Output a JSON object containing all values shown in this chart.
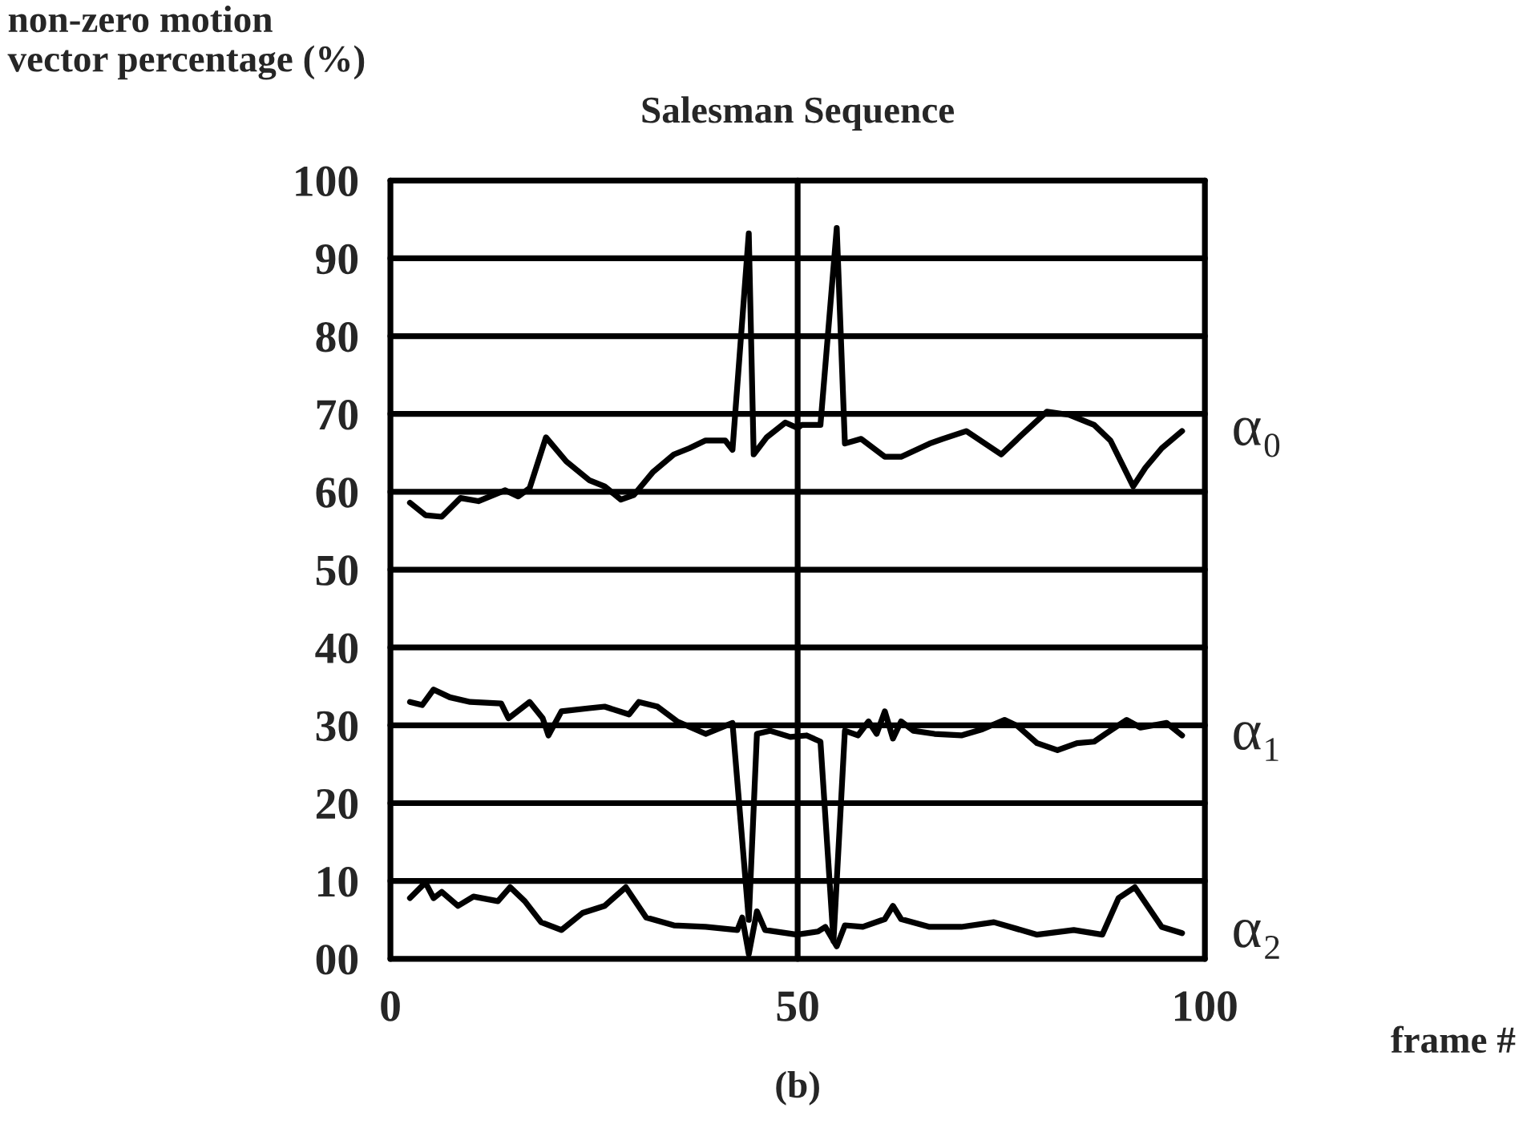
{
  "chart_data": {
    "type": "line",
    "title": "Salesman Sequence",
    "xlabel": "frame #",
    "ylabel": "non-zero motion\nvector percentage (%)",
    "annotations": [
      "(b)"
    ],
    "xlim": [
      0,
      100
    ],
    "ylim": [
      0,
      100
    ],
    "xticks": [
      0,
      50,
      100
    ],
    "yticks": [
      {
        "value": 0,
        "label": "00"
      },
      10,
      20,
      30,
      40,
      50,
      60,
      70,
      80,
      90,
      100
    ],
    "grid": true,
    "legend": false,
    "marker": "none",
    "line_style": "solid",
    "series": [
      {
        "name": "α₀",
        "color": "#000000",
        "x": [
          2.4,
          4.3,
          6.3,
          8.6,
          10.8,
          14.1,
          15.7,
          17.1,
          19.1,
          21.6,
          24.4,
          26.3,
          28.3,
          29.9,
          32.2,
          34.8,
          36.7,
          38.7,
          41.1,
          42.0,
          44.0,
          44.6,
          46.2,
          48.5,
          50.0,
          50.5,
          52.8,
          54.8,
          55.8,
          57.8,
          60.7,
          62.7,
          66.2,
          67.8,
          70.7,
          75.0,
          77.4,
          80.6,
          83.3,
          86.4,
          88.4,
          91.2,
          92.7,
          94.7,
          97.2
        ],
        "values": [
          58.6,
          57,
          56.8,
          59.2,
          58.8,
          60.2,
          59.4,
          60.5,
          67.0,
          63.9,
          61.5,
          60.7,
          59.0,
          59.6,
          62.5,
          64.8,
          65.6,
          66.6,
          66.6,
          65.4,
          93.2,
          64.8,
          67.0,
          68.9,
          68.2,
          68.6,
          68.6,
          93.9,
          66.2,
          66.8,
          64.5,
          64.5,
          66.2,
          66.8,
          67.8,
          64.8,
          67.2,
          70.3,
          69.9,
          68.6,
          66.6,
          60.7,
          63.1,
          65.6,
          67.8
        ]
      },
      {
        "name": "α₁",
        "color": "#000000",
        "x": [
          2.4,
          3.9,
          5.3,
          7.3,
          9.8,
          13.6,
          14.5,
          17.1,
          18.7,
          19.4,
          21.0,
          24.4,
          26.3,
          29.3,
          30.5,
          32.8,
          35.2,
          38.7,
          42.0,
          44.0,
          45.0,
          46.6,
          49.1,
          51.1,
          52.8,
          54.4,
          55.8,
          57.4,
          58.7,
          59.7,
          60.7,
          61.7,
          62.7,
          64.2,
          66.8,
          70.1,
          72.7,
          75.4,
          77.0,
          79.4,
          81.9,
          84.3,
          86.4,
          87.8,
          90.4,
          92.1,
          95.3,
          97.2
        ],
        "values": [
          33.0,
          32.6,
          34.6,
          33.6,
          33.0,
          32.8,
          30.9,
          33.0,
          30.9,
          28.7,
          31.8,
          32.2,
          32.4,
          31.4,
          33.0,
          32.4,
          30.5,
          28.9,
          30.3,
          5.0,
          28.9,
          29.3,
          28.5,
          28.7,
          27.9,
          2.3,
          29.3,
          28.7,
          30.5,
          28.9,
          31.8,
          28.3,
          30.5,
          29.3,
          28.9,
          28.7,
          29.5,
          30.7,
          29.9,
          27.7,
          26.8,
          27.7,
          27.9,
          28.9,
          30.7,
          29.7,
          30.3,
          28.7
        ]
      },
      {
        "name": "α₂",
        "color": "#000000",
        "x": [
          2.4,
          4.3,
          5.3,
          6.3,
          8.3,
          10.2,
          13.2,
          14.7,
          16.5,
          18.5,
          21.0,
          23.6,
          26.3,
          28.9,
          31.4,
          34.8,
          38.7,
          42.6,
          43.2,
          44.0,
          45.0,
          46.0,
          49.9,
          52.5,
          53.4,
          54.8,
          55.8,
          58.0,
          60.7,
          61.7,
          62.7,
          66.2,
          70.1,
          74.1,
          79.4,
          83.9,
          87.4,
          89.4,
          91.4,
          94.7,
          97.2
        ],
        "values": [
          7.8,
          9.8,
          7.8,
          8.6,
          6.8,
          8.0,
          7.4,
          9.2,
          7.4,
          4.7,
          3.7,
          5.9,
          6.8,
          9.2,
          5.3,
          4.3,
          4.1,
          3.7,
          5.3,
          0.6,
          6.1,
          3.7,
          3.1,
          3.5,
          4.1,
          1.6,
          4.3,
          4.1,
          5.1,
          6.8,
          5.1,
          4.1,
          4.1,
          4.7,
          3.1,
          3.7,
          3.1,
          7.8,
          9.2,
          4.1,
          3.3
        ]
      }
    ]
  }
}
